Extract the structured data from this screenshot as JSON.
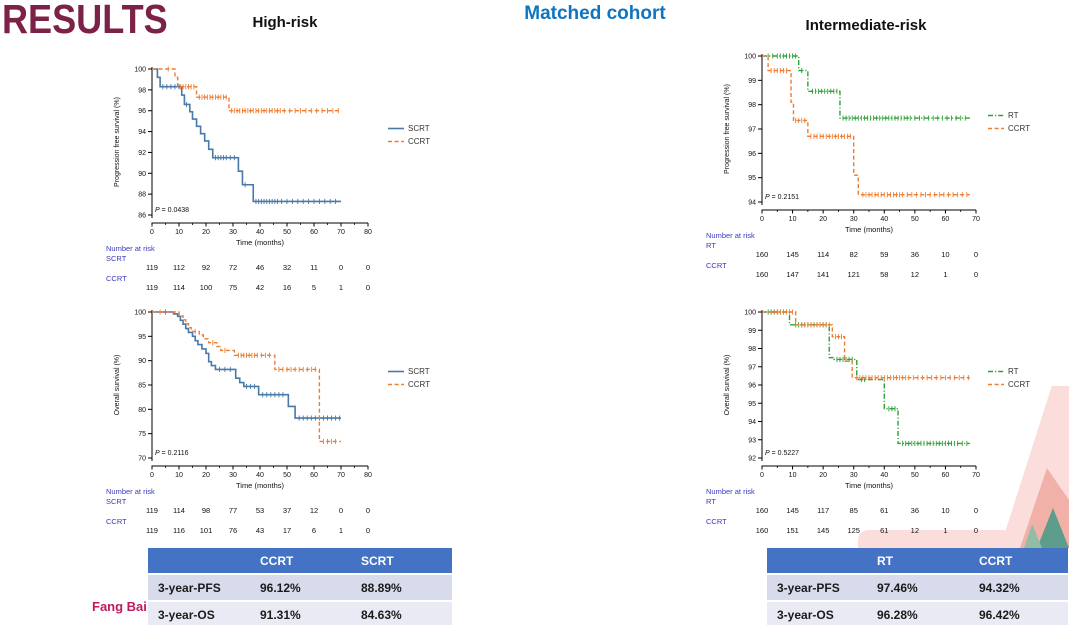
{
  "page": {
    "title": "RESULTS",
    "left_heading": "High-risk",
    "center_heading": "Matched cohort",
    "right_heading": "Intermediate-risk",
    "author": "Fang Bai"
  },
  "colors": {
    "title_maroon": "#7C2147",
    "cohort_blue": "#1075BE",
    "scrt_blue": "#4879A8",
    "ccrt_orange": "#ED7D31",
    "rt_green": "#2FA136",
    "risk_label_blue": "#3A3AB8",
    "table_header_blue": "#4472C4",
    "author_pink": "#C11A5E"
  },
  "chart_data": [
    {
      "id": "hr-pfs",
      "type": "line",
      "title": "High-risk progression free survival (Kaplan-Meier)",
      "ylabel": "Progression free survival (%)",
      "xlabel": "Time (months)",
      "xlim": [
        0,
        80
      ],
      "xticks": [
        0,
        10,
        20,
        30,
        40,
        50,
        60,
        70,
        80
      ],
      "ylim": [
        86,
        100
      ],
      "yticks": [
        86,
        88,
        90,
        92,
        94,
        96,
        98,
        100
      ],
      "p_text": "P = 0.0438",
      "legend_position": "right",
      "grid": false,
      "series": [
        {
          "name": "SCRT",
          "color": "#4879A8",
          "dash": "solid",
          "steps": [
            [
              0,
              100
            ],
            [
              2,
              99.2
            ],
            [
              3,
              98.3
            ],
            [
              11,
              97.5
            ],
            [
              12,
              96.6
            ],
            [
              14,
              95.9
            ],
            [
              15,
              95.2
            ],
            [
              16.5,
              94.5
            ],
            [
              18,
              93.8
            ],
            [
              19.5,
              93.1
            ],
            [
              21,
              92.3
            ],
            [
              22.5,
              91.5
            ],
            [
              32,
              90.2
            ],
            [
              33.5,
              88.9
            ],
            [
              37.5,
              87.3
            ],
            [
              70,
              87.3
            ]
          ],
          "censors": [
            4,
            5.5,
            7,
            8.5,
            10,
            12.8,
            23.5,
            24.5,
            25.5,
            26.5,
            27.5,
            29,
            30.5,
            34.5,
            38.5,
            39.5,
            40.5,
            41.5,
            42.5,
            43.5,
            44.5,
            45.5,
            46.5,
            48,
            50,
            52,
            54,
            56,
            58,
            60,
            62,
            64,
            66,
            68
          ]
        },
        {
          "name": "CCRT",
          "color": "#ED7D31",
          "dash": "dashed",
          "steps": [
            [
              0,
              100
            ],
            [
              8.5,
              99.2
            ],
            [
              9.5,
              98.3
            ],
            [
              16.5,
              97.3
            ],
            [
              28.5,
              96
            ],
            [
              70,
              96
            ]
          ],
          "censors": [
            6,
            10.5,
            11.5,
            12.5,
            13.5,
            14.5,
            15.5,
            17.5,
            18.5,
            19.5,
            20.5,
            21.5,
            22.5,
            23.5,
            24.5,
            25.5,
            26.5,
            27.5,
            29.5,
            30.5,
            31.5,
            32.5,
            33.5,
            34.5,
            35.5,
            36.5,
            37.5,
            38.5,
            39.5,
            40.5,
            41.5,
            42.5,
            43.5,
            44.5,
            45.5,
            46.5,
            47.5,
            49,
            51,
            53,
            55,
            57,
            59,
            61,
            63,
            65,
            67,
            69
          ]
        }
      ],
      "risk_table": {
        "label": "Number at risk",
        "rows": [
          {
            "name": "SCRT",
            "values": [
              119,
              112,
              92,
              72,
              46,
              32,
              11,
              0,
              0
            ]
          },
          {
            "name": "CCRT",
            "values": [
              119,
              114,
              100,
              75,
              42,
              16,
              5,
              1,
              0
            ]
          }
        ]
      }
    },
    {
      "id": "hr-os",
      "type": "line",
      "title": "High-risk overall survival (Kaplan-Meier)",
      "ylabel": "Overall survival (%)",
      "xlabel": "Time (months)",
      "xlim": [
        0,
        80
      ],
      "xticks": [
        0,
        10,
        20,
        30,
        40,
        50,
        60,
        70,
        80
      ],
      "ylim": [
        70,
        100
      ],
      "yticks": [
        70,
        75,
        80,
        85,
        90,
        95,
        100
      ],
      "p_text": "P = 0.2116",
      "legend_position": "right",
      "grid": false,
      "series": [
        {
          "name": "SCRT",
          "color": "#4879A8",
          "dash": "solid",
          "steps": [
            [
              0,
              100
            ],
            [
              8,
              99.6
            ],
            [
              9.5,
              99.1
            ],
            [
              10.5,
              98.3
            ],
            [
              11.5,
              97.5
            ],
            [
              12.5,
              96.6
            ],
            [
              13.5,
              95.8
            ],
            [
              15,
              95
            ],
            [
              16,
              94.1
            ],
            [
              17,
              93.3
            ],
            [
              18.5,
              92.4
            ],
            [
              20,
              91.5
            ],
            [
              21,
              89.8
            ],
            [
              22,
              89
            ],
            [
              23.5,
              88.2
            ],
            [
              31,
              86.4
            ],
            [
              32.5,
              85.5
            ],
            [
              34,
              84.7
            ],
            [
              39.5,
              83
            ],
            [
              50.5,
              80.6
            ],
            [
              53,
              78.2
            ],
            [
              70,
              78.2
            ]
          ],
          "censors": [
            5,
            25,
            27,
            29,
            35,
            36.5,
            38,
            41,
            42.5,
            44,
            45.5,
            47,
            48.5,
            54.5,
            56,
            57.5,
            59,
            60.5,
            62,
            63.5,
            65,
            66.5,
            68,
            69.5
          ]
        },
        {
          "name": "CCRT",
          "color": "#ED7D31",
          "dash": "dashed",
          "steps": [
            [
              0,
              100
            ],
            [
              10,
              99.2
            ],
            [
              11.5,
              98.4
            ],
            [
              12.5,
              97.6
            ],
            [
              13.5,
              96.8
            ],
            [
              14.5,
              96
            ],
            [
              17.5,
              95.3
            ],
            [
              19,
              94.5
            ],
            [
              21,
              93.7
            ],
            [
              24,
              92.9
            ],
            [
              25.5,
              92.1
            ],
            [
              30.5,
              91.1
            ],
            [
              45.5,
              88.2
            ],
            [
              62,
              73.4
            ],
            [
              70,
              73.4
            ]
          ],
          "censors": [
            3,
            16,
            22.5,
            27,
            32,
            33,
            34,
            35,
            36,
            37,
            38,
            39,
            40.5,
            42,
            43.5,
            47,
            48.5,
            50,
            51.5,
            53,
            54.5,
            56,
            57.5,
            59,
            60.5,
            63.5,
            65,
            66.5,
            68
          ]
        }
      ],
      "risk_table": {
        "label": "Number at risk",
        "rows": [
          {
            "name": "SCRT",
            "values": [
              119,
              114,
              98,
              77,
              53,
              37,
              12,
              0,
              0
            ]
          },
          {
            "name": "CCRT",
            "values": [
              119,
              116,
              101,
              76,
              43,
              17,
              6,
              1,
              0
            ]
          }
        ]
      }
    },
    {
      "id": "ir-pfs",
      "type": "line",
      "title": "Intermediate-risk progression free survival (Kaplan-Meier)",
      "ylabel": "Progression free survival (%)",
      "xlabel": "Time (months)",
      "xlim": [
        0,
        70
      ],
      "xticks": [
        0,
        10,
        20,
        30,
        40,
        50,
        60,
        70
      ],
      "ylim": [
        94,
        100
      ],
      "yticks": [
        94,
        95,
        96,
        97,
        98,
        99,
        100
      ],
      "p_text": "P = 0.2151",
      "legend_position": "right",
      "grid": false,
      "series": [
        {
          "name": "RT",
          "color": "#2FA136",
          "dash": "dashdot",
          "steps": [
            [
              0,
              100
            ],
            [
              12,
              99.4
            ],
            [
              15,
              98.55
            ],
            [
              25.5,
              97.45
            ],
            [
              68,
              97.45
            ]
          ],
          "censors": [
            2,
            3.5,
            5,
            6,
            7,
            8,
            9,
            10,
            11,
            13,
            16.5,
            17.5,
            18.5,
            19.5,
            20.5,
            21.5,
            22.5,
            23.5,
            24.5,
            26.5,
            27.5,
            28.5,
            29.5,
            30.5,
            31.5,
            32.5,
            33.5,
            34.5,
            35.5,
            36.5,
            37.5,
            38.5,
            39.5,
            40.5,
            41.5,
            42.5,
            43.5,
            44.5,
            45.5,
            46.5,
            47.5,
            48.5,
            50,
            51.5,
            53,
            54.5,
            56,
            57.5,
            59,
            60.5,
            62,
            63.5,
            65,
            66.5
          ]
        },
        {
          "name": "CCRT",
          "color": "#ED7D31",
          "dash": "dashed",
          "steps": [
            [
              0,
              100
            ],
            [
              2,
              99.4
            ],
            [
              9.5,
              98.1
            ],
            [
              10.3,
              97.35
            ],
            [
              15,
              96.7
            ],
            [
              30,
              95.1
            ],
            [
              31.5,
              94.3
            ],
            [
              68,
              94.3
            ]
          ],
          "censors": [
            3,
            4,
            5,
            6,
            7,
            8,
            11,
            12,
            13,
            14,
            16,
            17,
            18,
            19,
            20,
            21,
            22,
            23,
            24,
            25,
            26,
            27,
            28,
            29,
            33,
            34,
            35,
            36,
            37,
            38,
            39,
            40,
            41,
            42,
            43,
            44,
            45,
            46,
            47.5,
            49,
            50.5,
            52,
            53.5,
            55,
            56.5,
            58,
            59.5,
            61,
            62.5,
            64,
            65.5,
            67
          ]
        }
      ],
      "risk_table": {
        "label": "Number at risk",
        "rows": [
          {
            "name": "RT",
            "values": [
              160,
              145,
              114,
              82,
              59,
              36,
              10,
              0
            ]
          },
          {
            "name": "CCRT",
            "values": [
              160,
              147,
              141,
              121,
              58,
              12,
              1,
              0
            ]
          }
        ]
      }
    },
    {
      "id": "ir-os",
      "type": "line",
      "title": "Intermediate-risk overall survival (Kaplan-Meier)",
      "ylabel": "Overall survival (%)",
      "xlabel": "Time (months)",
      "xlim": [
        0,
        70
      ],
      "xticks": [
        0,
        10,
        20,
        30,
        40,
        50,
        60,
        70
      ],
      "ylim": [
        92,
        100
      ],
      "yticks": [
        92,
        93,
        94,
        95,
        96,
        97,
        98,
        99,
        100
      ],
      "p_text": "P = 0.5227",
      "legend_position": "right",
      "grid": false,
      "series": [
        {
          "name": "RT",
          "color": "#2FA136",
          "dash": "dashdot",
          "steps": [
            [
              0,
              100
            ],
            [
              9,
              99.3
            ],
            [
              22,
              97.5
            ],
            [
              23.5,
              97.4
            ],
            [
              31,
              96.3
            ],
            [
              40,
              94.7
            ],
            [
              44.5,
              92.8
            ],
            [
              68,
              92.8
            ]
          ],
          "censors": [
            2,
            3,
            4,
            5,
            6,
            7,
            11,
            12,
            13,
            14,
            15,
            16,
            17,
            18,
            19,
            20,
            21,
            24.5,
            25.5,
            26.5,
            27.5,
            28.5,
            29.5,
            32.5,
            33.5,
            41.5,
            42.5,
            43.5,
            46,
            47,
            48,
            49,
            50,
            51,
            52,
            53,
            54,
            55,
            56,
            57,
            58,
            59,
            60,
            61,
            62,
            63,
            64,
            65.5,
            67
          ]
        },
        {
          "name": "CCRT",
          "color": "#ED7D31",
          "dash": "dashed",
          "steps": [
            [
              0,
              100
            ],
            [
              11,
              99.3
            ],
            [
              23,
              98.65
            ],
            [
              27,
              97.3
            ],
            [
              29.5,
              96.4
            ],
            [
              68,
              96.4
            ]
          ],
          "censors": [
            4,
            5,
            6,
            7,
            8,
            9,
            10,
            13,
            14,
            15,
            16,
            17,
            18,
            19,
            20,
            21,
            22,
            24,
            25,
            26,
            31,
            32,
            33,
            34,
            35,
            36,
            37,
            38,
            39,
            40,
            41,
            42,
            43,
            44,
            45,
            46,
            47,
            48,
            49.5,
            51,
            52.5,
            54,
            55.5,
            57,
            58.5,
            60,
            61.5,
            63,
            64.5,
            66,
            67.5
          ]
        }
      ],
      "risk_table": {
        "label": "Number at risk",
        "rows": [
          {
            "name": "RT",
            "values": [
              160,
              145,
              117,
              85,
              61,
              36,
              10,
              0
            ]
          },
          {
            "name": "CCRT",
            "values": [
              160,
              151,
              145,
              125,
              61,
              12,
              1,
              0
            ]
          }
        ]
      }
    }
  ],
  "tables": {
    "left": {
      "header": [
        "",
        "CCRT",
        "SCRT"
      ],
      "rows": [
        {
          "label": "3-year-PFS",
          "values": [
            "96.12%",
            "88.89%"
          ]
        },
        {
          "label": "3-year-OS",
          "values": [
            "91.31%",
            "84.63%"
          ]
        }
      ]
    },
    "right": {
      "header": [
        "",
        "RT",
        "CCRT"
      ],
      "rows": [
        {
          "label": "3-year-PFS",
          "values": [
            "97.46%",
            "94.32%"
          ]
        },
        {
          "label": "3-year-OS",
          "values": [
            "96.28%",
            "96.42%"
          ]
        }
      ]
    }
  }
}
